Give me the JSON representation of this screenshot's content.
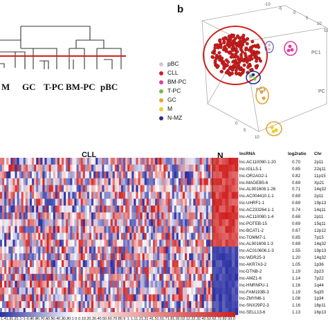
{
  "panel_a": {
    "cluster_labels": [
      "M",
      "GC",
      "T-PC",
      "BM-PC",
      "pBC"
    ]
  },
  "panel_b": {
    "letter": "b",
    "axis_labels": [
      "PC1",
      "PC3",
      "PC"
    ],
    "tick_labels": [
      "-10",
      "-5",
      "0",
      "5",
      "10",
      "15",
      "0",
      "5",
      "10"
    ],
    "legend": [
      {
        "label": "pBC",
        "color": "#d7c3d6"
      },
      {
        "label": "CLL",
        "color": "#d11f1f"
      },
      {
        "label": "BM-PC",
        "color": "#e23ca1"
      },
      {
        "label": "T-PC",
        "color": "#7ab84a"
      },
      {
        "label": "GC",
        "color": "#e8a232"
      },
      {
        "label": "M",
        "color": "#e8cf2c"
      },
      {
        "label": "N-MZ",
        "color": "#2b2e86"
      }
    ]
  },
  "heatmap": {
    "title_cll": "CLL",
    "title_n": "N",
    "low_color": "#2a2fa3",
    "mid_color": "#ffffff",
    "high_color": "#d01e1e",
    "scale_labels": [
      "-1.4",
      "-1.3",
      "-1.2",
      "-1.1",
      "-1",
      "-0.9",
      "-0.8",
      "-0.7",
      "-0.6",
      "-0.5",
      "-0.4",
      "-0.3",
      "-0.2",
      "-0.1",
      "0",
      "0.1",
      "0.2",
      "0.3",
      "0.4",
      "0.5",
      "0.6",
      "0.7",
      "0.8",
      "0.9",
      "1",
      "1.1",
      "1.2",
      "1.3",
      "1.4",
      "1.5",
      "1.6",
      "1.7",
      "1.8",
      "1.9",
      "2.0",
      "2.1",
      "2.2",
      "2.3",
      "2.4",
      "2.5",
      "2.6",
      "2.7",
      "2.8",
      "2.9",
      "3.0"
    ]
  },
  "table": {
    "headers": [
      "lncRNA",
      "log2ratio",
      "Chr"
    ],
    "rows": [
      {
        "name": "lnc-AC110080.1-20",
        "ratio": "0.70",
        "chr": "2p11"
      },
      {
        "name": "lnc-IGLL5-1",
        "ratio": "0.85",
        "chr": "22q11"
      },
      {
        "name": "lnc-OR2AG2-1",
        "ratio": "0.82",
        "chr": "11p15"
      },
      {
        "name": "lnc-MAGEB5-6",
        "ratio": "0.69",
        "chr": "Xp21"
      },
      {
        "name": "lnc-AL901608.1-26",
        "ratio": "0.71",
        "chr": "14q32"
      },
      {
        "name": "lnc-AC004410.1-1",
        "ratio": "0.69",
        "chr": "2p11"
      },
      {
        "name": "lnc-UHRF1-1",
        "ratio": "0.69",
        "chr": "19p13"
      },
      {
        "name": "lnc-AC233264.1-1",
        "ratio": "0.74",
        "chr": "14q11"
      },
      {
        "name": "lnc-AC110080.1-4",
        "ratio": "0.68",
        "chr": "2p11"
      },
      {
        "name": "lnc-POTEB-15",
        "ratio": "0.69",
        "chr": "15q11"
      },
      {
        "name": "lnc-BCAT1-2",
        "ratio": "0.67",
        "chr": "12p12"
      },
      {
        "name": "lnc-TOMM7-1",
        "ratio": "0.85",
        "chr": "7p15"
      },
      {
        "name": "lnc-AL901608.1-3",
        "ratio": "0.69",
        "chr": "14q32"
      },
      {
        "name": "lnc-AC010606.1-3",
        "ratio": "1.55",
        "chr": "19p13"
      },
      {
        "name": "lnc-WDR25-3",
        "ratio": "1.20",
        "chr": "14q32"
      },
      {
        "name": "lnc-AKR7A3-2",
        "ratio": "1.05",
        "chr": "1p36"
      },
      {
        "name": "lnc-DTNB-2",
        "ratio": "1.19",
        "chr": "2p23"
      },
      {
        "name": "lnc-AMZ1-6",
        "ratio": "1.14",
        "chr": "7p22"
      },
      {
        "name": "lnc-HNRNPU-1",
        "ratio": "1.16",
        "chr": "1q44"
      },
      {
        "name": "lnc-FAM193B-3",
        "ratio": "1.19",
        "chr": "5q35"
      },
      {
        "name": "lnc-ZMYM6-1",
        "ratio": "1.08",
        "chr": "1p34"
      },
      {
        "name": "lnc-SNX29P2-3",
        "ratio": "1.16",
        "chr": "16p11"
      },
      {
        "name": "lnc-SELL13-6",
        "ratio": "1.13",
        "chr": "16p13"
      }
    ]
  }
}
